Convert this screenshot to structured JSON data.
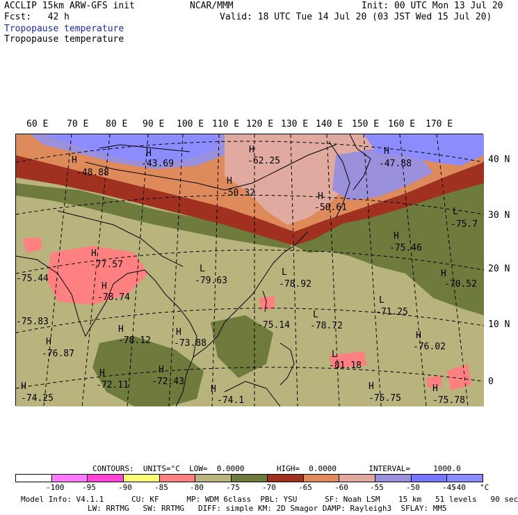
{
  "header": {
    "line1_left": "ACCLIP 15km ARW-GFS init",
    "center": "NCAR/MMM",
    "line1_right": "Init: 00 UTC Mon 13 Jul 20",
    "fcst": "Fcst:   42 h",
    "valid": "Valid: 18 UTC Tue 14 Jul 20 (03 JST Wed 15 Jul 20)",
    "field_title_blue": "Tropopause temperature",
    "field_title_black": "Tropopause temperature"
  },
  "lon_labels": [
    "60 E",
    "70 E",
    "80 E",
    "90 E",
    "100 E",
    "110 E",
    "120 E",
    "130 E",
    "140 E",
    "150 E",
    "160 E",
    "170 E"
  ],
  "lat_labels": [
    "40 N",
    "30 N",
    "20 N",
    "10 N",
    "0"
  ],
  "map_labels": [
    {
      "id": "H1",
      "text": "H"
    },
    {
      "id": "v1",
      "text": "-48.88"
    },
    {
      "id": "H2",
      "text": "H"
    },
    {
      "id": "v2",
      "text": "-43.69"
    },
    {
      "id": "H3",
      "text": "H"
    },
    {
      "id": "v3",
      "text": "-62.25"
    },
    {
      "id": "H4",
      "text": "H"
    },
    {
      "id": "v4",
      "text": "-50.32"
    },
    {
      "id": "H5",
      "text": "H"
    },
    {
      "id": "v5",
      "text": "-50.61"
    },
    {
      "id": "H6",
      "text": "H"
    },
    {
      "id": "v6",
      "text": "-47.88"
    },
    {
      "id": "L1",
      "text": "L"
    },
    {
      "id": "v7",
      "text": "-75.7"
    },
    {
      "id": "H7",
      "text": "H"
    },
    {
      "id": "v8",
      "text": "-75.46"
    },
    {
      "id": "H8",
      "text": "H"
    },
    {
      "id": "v9",
      "text": "-77.57"
    },
    {
      "id": "L2",
      "text": "L"
    },
    {
      "id": "v10",
      "text": "-79.63"
    },
    {
      "id": "L3",
      "text": "L"
    },
    {
      "id": "v11",
      "text": "-78.92"
    },
    {
      "id": "H9",
      "text": "H"
    },
    {
      "id": "v12",
      "text": "-70.52"
    },
    {
      "id": "v13",
      "text": "-75.44"
    },
    {
      "id": "H10",
      "text": "H"
    },
    {
      "id": "v14",
      "text": "-78.74"
    },
    {
      "id": "L4",
      "text": "L"
    },
    {
      "id": "v15",
      "text": "-71.25"
    },
    {
      "id": "v16",
      "text": "-75.14"
    },
    {
      "id": "L5",
      "text": "L"
    },
    {
      "id": "v17",
      "text": "-78.72"
    },
    {
      "id": "v18",
      "text": "-75.83"
    },
    {
      "id": "H11",
      "text": "H"
    },
    {
      "id": "v19",
      "text": "-78.12"
    },
    {
      "id": "H12",
      "text": "H"
    },
    {
      "id": "v20",
      "text": "-73.88"
    },
    {
      "id": "H13",
      "text": "H"
    },
    {
      "id": "v21",
      "text": "-76.02"
    },
    {
      "id": "H14",
      "text": "H"
    },
    {
      "id": "v22",
      "text": "-76.87"
    },
    {
      "id": "L6",
      "text": "L"
    },
    {
      "id": "v23",
      "text": "-81.18"
    },
    {
      "id": "H15",
      "text": "H"
    },
    {
      "id": "v24",
      "text": "-72.11"
    },
    {
      "id": "H16",
      "text": "H"
    },
    {
      "id": "v25",
      "text": "-72.43"
    },
    {
      "id": "H17",
      "text": "H"
    },
    {
      "id": "v26",
      "text": "-75.75"
    },
    {
      "id": "H18",
      "text": "H"
    },
    {
      "id": "v27",
      "text": "-75.78"
    },
    {
      "id": "H19",
      "text": "H"
    },
    {
      "id": "v28",
      "text": "-74.25"
    },
    {
      "id": "H20",
      "text": "H"
    },
    {
      "id": "v29",
      "text": "-74.1"
    }
  ],
  "contours": {
    "line": "CONTOURS:  UNITS=°C  LOW=  0.0000       HIGH=  0.0000       INTERVAL=     1000.0"
  },
  "legend": {
    "colors": [
      "#ffffff",
      "#ff7aff",
      "#ff44d8",
      "#ffff7a",
      "#ff8080",
      "#b9b47e",
      "#6e7b3c",
      "#a03020",
      "#de8a5a",
      "#e0aaa0",
      "#9a90dc",
      "#7878ff",
      "#8c8cff"
    ],
    "ticks": [
      "-100",
      "-95",
      "-90",
      "-85",
      "-80",
      "-75",
      "-70",
      "-65",
      "-60",
      "-55",
      "-50",
      "-45",
      "-40",
      "°C"
    ]
  },
  "model_info": {
    "line1": "Model Info: V4.1.1      CU: KF      MP: WDM 6class  PBL: YSU      SF: Noah LSM    15 km   51 levels   90 sec",
    "line2": "LW: RRTMG   SW: RRTMG   DIFF: simple KM: 2D Smagor DAMP: Rayleigh3  SFLAY: MM5"
  }
}
